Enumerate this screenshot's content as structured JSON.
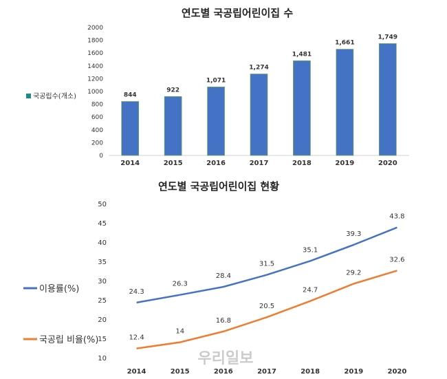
{
  "chart_data": [
    {
      "type": "bar",
      "title": "연도별 국공립어린이집 수",
      "categories": [
        "2014",
        "2015",
        "2016",
        "2017",
        "2018",
        "2019",
        "2020"
      ],
      "series": [
        {
          "name": "국공립수(개소)",
          "values": [
            844,
            922,
            1071,
            1274,
            1481,
            1661,
            1749
          ],
          "labels": [
            "844",
            "922",
            "1,071",
            "1,274",
            "1,481",
            "1,661",
            "1,749"
          ],
          "color": "#4472c4"
        }
      ],
      "ylim": [
        0,
        2000
      ],
      "yticks": [
        "0",
        "200",
        "400",
        "600",
        "800",
        "1000",
        "1200",
        "1400",
        "1600",
        "1800",
        "2000"
      ],
      "legend_position": "left",
      "grid": false
    },
    {
      "type": "line",
      "title": "연도별 국공립어린이집 현황",
      "categories": [
        "2014",
        "2015",
        "2016",
        "2017",
        "2018",
        "2019",
        "2020"
      ],
      "series": [
        {
          "name": "이용률(%)",
          "values": [
            24.3,
            26.3,
            28.4,
            31.5,
            35.1,
            39.3,
            43.8
          ],
          "labels": [
            "24.3",
            "26.3",
            "28.4",
            "31.5",
            "35.1",
            "39.3",
            "43.8"
          ],
          "color": "#4472c4"
        },
        {
          "name": "국공립 비율(%)",
          "values": [
            12.4,
            14,
            16.8,
            20.5,
            24.7,
            29.2,
            32.6
          ],
          "labels": [
            "12.4",
            "14",
            "16.8",
            "20.5",
            "24.7",
            "29.2",
            "32.6"
          ],
          "color": "#ed7d31"
        }
      ],
      "ylim": [
        10,
        50
      ],
      "yticks": [
        "10",
        "15",
        "20",
        "25",
        "30",
        "35",
        "40",
        "45",
        "50"
      ],
      "legend_position": "left",
      "grid": false
    }
  ],
  "watermark": "우리일보"
}
